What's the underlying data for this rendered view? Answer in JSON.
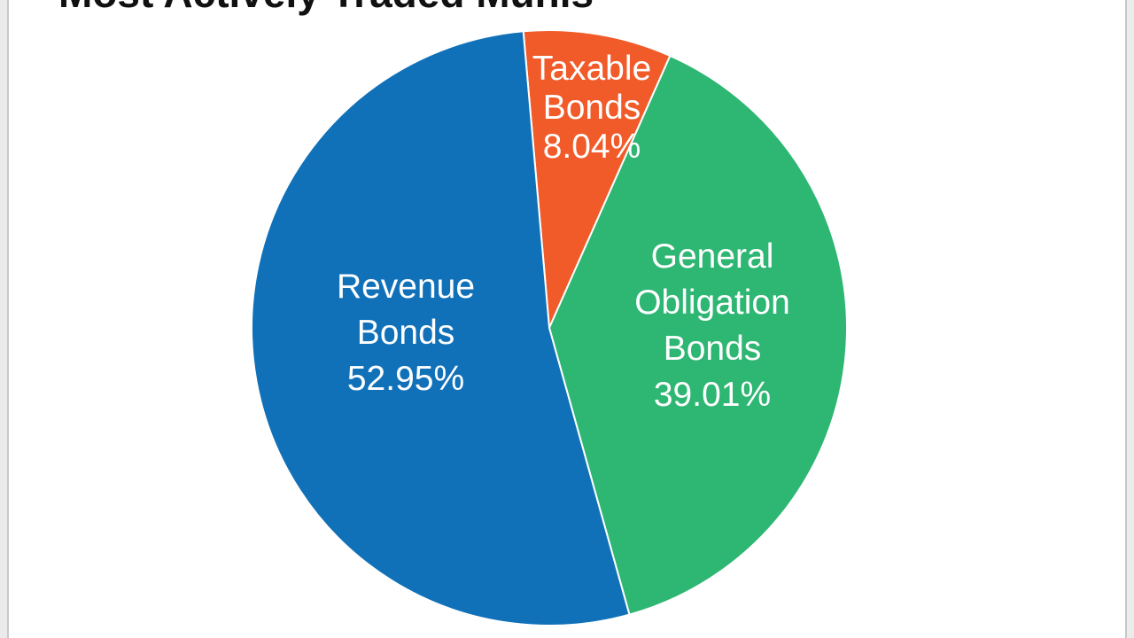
{
  "title": "Most Actively Traded Munis",
  "footer_note": "",
  "chart_data": {
    "type": "pie",
    "title": "Most Actively Traded Munis",
    "unit": "%",
    "slices": [
      {
        "label_lines": [
          "Taxable",
          "Bonds"
        ],
        "value": 8.04,
        "value_text": "8.04%",
        "color": "#f15a29"
      },
      {
        "label_lines": [
          "General",
          "Obligation",
          "Bonds"
        ],
        "value": 39.01,
        "value_text": "39.01%",
        "color": "#2eb673"
      },
      {
        "label_lines": [
          "Revenue",
          "Bonds"
        ],
        "value": 52.95,
        "value_text": "52.95%",
        "color": "#1071b9"
      }
    ],
    "legend": "none (labels inside slices)"
  }
}
